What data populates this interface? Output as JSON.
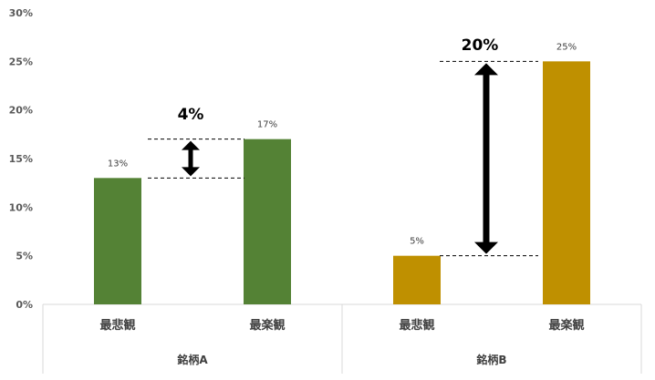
{
  "chart_data": {
    "type": "bar",
    "groups": [
      "銘柄A",
      "銘柄B"
    ],
    "categories": [
      "最悲観",
      "最楽観"
    ],
    "bars": [
      {
        "group": "銘柄A",
        "category": "最悲観",
        "value": 13,
        "label": "13%",
        "color": "#548235"
      },
      {
        "group": "銘柄A",
        "category": "最楽観",
        "value": 17,
        "label": "17%",
        "color": "#548235"
      },
      {
        "group": "銘柄B",
        "category": "最悲観",
        "value": 5,
        "label": "5%",
        "color": "#BF9000"
      },
      {
        "group": "銘柄B",
        "category": "最楽観",
        "value": 25,
        "label": "25%",
        "color": "#BF9000"
      }
    ],
    "yticks": [
      "0%",
      "5%",
      "10%",
      "15%",
      "20%",
      "25%",
      "30%"
    ],
    "ylim": [
      0,
      30
    ],
    "annotations": [
      {
        "group": "銘柄A",
        "text": "4%",
        "from": 13,
        "to": 17
      },
      {
        "group": "銘柄B",
        "text": "20%",
        "from": 5,
        "to": 25
      }
    ],
    "grid": false
  }
}
